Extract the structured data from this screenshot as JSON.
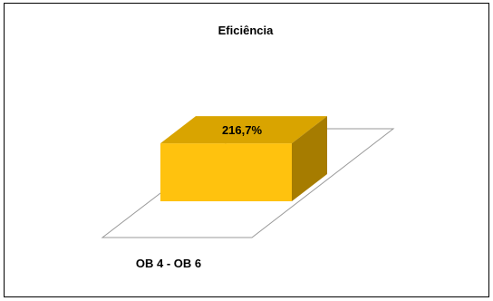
{
  "chart_data": {
    "type": "bar",
    "title": "Eficiência",
    "categories": [
      "OB 4 - OB 6"
    ],
    "values": [
      216.7
    ],
    "data_labels": [
      "216,7%"
    ],
    "ylim": [
      0,
      300
    ],
    "legend": "none",
    "grid": false,
    "three_d": true,
    "colors": {
      "bar_front": "#FFC20E",
      "bar_top": "#D9A400",
      "bar_side": "#A67C00",
      "floor_stroke": "#9A9A9A",
      "wall_stroke": "#9A9A9A",
      "frame_stroke": "#000000"
    }
  }
}
